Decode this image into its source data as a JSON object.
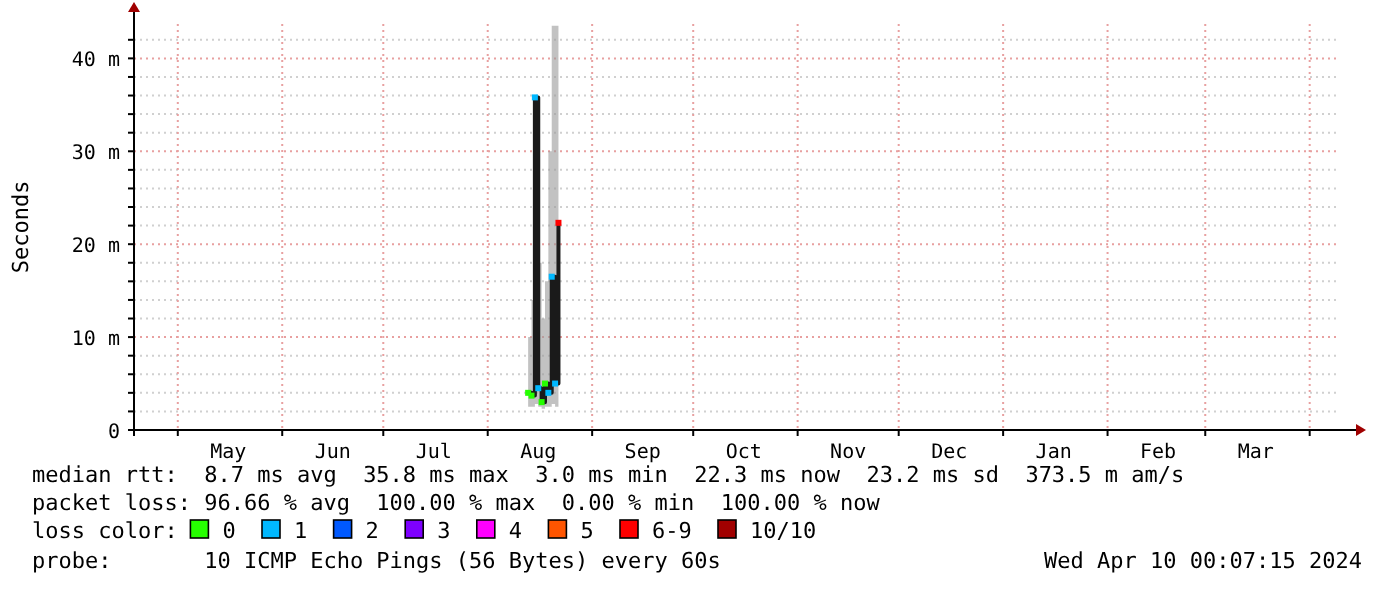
{
  "chart_data": {
    "type": "line",
    "ylabel": "Seconds",
    "legend_title": "loss color:",
    "legend": "bottom",
    "grid": true,
    "xlim": [
      "2023-04-18",
      "2024-04-10"
    ],
    "xticks": [
      {
        "value": "2023-05-01",
        "label": null
      },
      {
        "value": "2023-05-16",
        "label": "May"
      },
      {
        "value": "2023-06-01",
        "label": null
      },
      {
        "value": "2023-06-16",
        "label": "Jun"
      },
      {
        "value": "2023-07-01",
        "label": null
      },
      {
        "value": "2023-07-16",
        "label": "Jul"
      },
      {
        "value": "2023-08-01",
        "label": null
      },
      {
        "value": "2023-08-16",
        "label": "Aug"
      },
      {
        "value": "2023-09-01",
        "label": null
      },
      {
        "value": "2023-09-16",
        "label": "Sep"
      },
      {
        "value": "2023-10-01",
        "label": null
      },
      {
        "value": "2023-10-16",
        "label": "Oct"
      },
      {
        "value": "2023-11-01",
        "label": null
      },
      {
        "value": "2023-11-16",
        "label": "Nov"
      },
      {
        "value": "2023-12-01",
        "label": null
      },
      {
        "value": "2023-12-16",
        "label": "Dec"
      },
      {
        "value": "2024-01-01",
        "label": null
      },
      {
        "value": "2024-01-16",
        "label": "Jan"
      },
      {
        "value": "2024-02-01",
        "label": null
      },
      {
        "value": "2024-02-16",
        "label": "Feb"
      },
      {
        "value": "2024-03-01",
        "label": null
      },
      {
        "value": "2024-03-16",
        "label": "Mar"
      },
      {
        "value": "2024-04-01",
        "label": null
      }
    ],
    "ylim": [
      0,
      43.7
    ],
    "yticks": [
      {
        "value": 0,
        "label": "0"
      },
      {
        "value": 2,
        "label": null
      },
      {
        "value": 4,
        "label": null
      },
      {
        "value": 6,
        "label": null
      },
      {
        "value": 8,
        "label": null
      },
      {
        "value": 10,
        "label": "10 m"
      },
      {
        "value": 12,
        "label": null
      },
      {
        "value": 14,
        "label": null
      },
      {
        "value": 16,
        "label": null
      },
      {
        "value": 18,
        "label": null
      },
      {
        "value": 20,
        "label": "20 m"
      },
      {
        "value": 22,
        "label": null
      },
      {
        "value": 24,
        "label": null
      },
      {
        "value": 26,
        "label": null
      },
      {
        "value": 28,
        "label": null
      },
      {
        "value": 30,
        "label": "30 m"
      },
      {
        "value": 32,
        "label": null
      },
      {
        "value": 34,
        "label": null
      },
      {
        "value": 36,
        "label": null
      },
      {
        "value": 38,
        "label": null
      },
      {
        "value": 40,
        "label": "40 m"
      },
      {
        "value": 42,
        "label": null
      }
    ],
    "series": [
      {
        "color": "#1a1a1a",
        "x": [
          "2023-08-13",
          "2023-08-14",
          "2023-08-15",
          "2023-08-16",
          "2023-08-17",
          "2023-08-18",
          "2023-08-19",
          "2023-08-20",
          "2023-08-21",
          "2023-08-22"
        ],
        "values": [
          4,
          3.7,
          35.8,
          4.5,
          3.0,
          5,
          4,
          16.5,
          5,
          22.3
        ],
        "lower": [
          2.5,
          2.5,
          2.8,
          2.5,
          2.3,
          2.5,
          2.5,
          2.8,
          2.5,
          3
        ],
        "upper": [
          10,
          14,
          36,
          18,
          12,
          16,
          30,
          43.5,
          43.5,
          24
        ]
      },
      {
        "type": "scatter",
        "marker": "square",
        "name": "0",
        "color": "#26ff00",
        "x": [
          "2023-08-13",
          "2023-08-14",
          "2023-08-17",
          "2023-08-18"
        ],
        "values": [
          4,
          3.7,
          3.0,
          5
        ]
      },
      {
        "type": "scatter",
        "marker": "square",
        "name": "1",
        "color": "#00b8ff",
        "x": [
          "2023-08-15",
          "2023-08-16",
          "2023-08-19",
          "2023-08-20",
          "2023-08-21"
        ],
        "values": [
          35.8,
          4.5,
          4,
          16.5,
          5
        ]
      },
      {
        "type": "scatter",
        "name": "2",
        "color": "#0059ff"
      },
      {
        "type": "scatter",
        "name": "3",
        "color": "#7e00ff"
      },
      {
        "type": "scatter",
        "name": "4",
        "color": "#ff00ff"
      },
      {
        "type": "scatter",
        "name": "5",
        "color": "#ff5500"
      },
      {
        "type": "scatter",
        "marker": "square",
        "name": "6-9",
        "color": "#ff0000",
        "x": [
          "2023-08-22"
        ],
        "values": [
          22.3
        ]
      },
      {
        "type": "scatter",
        "name": "10/10",
        "color": "#a10000"
      }
    ],
    "annotations": [
      "median rtt:  8.7 ms avg  35.8 ms max  3.0 ms min  22.3 ms now  23.2 ms sd  373.5 m am/s",
      "packet loss: 96.66 % avg  100.00 % max  0.00 % min  100.00 % now",
      "probe:       10 ICMP Echo Pings (56 Bytes) every 60s",
      "Wed Apr 10 00:07:15 2024"
    ]
  }
}
